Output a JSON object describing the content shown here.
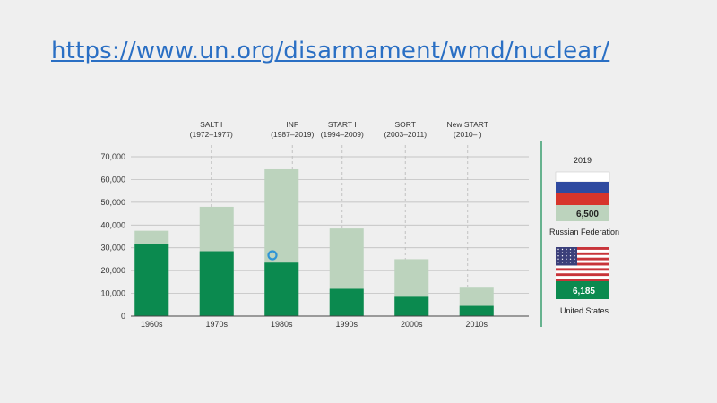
{
  "link": {
    "text": "https://www.un.org/disarmament/wmd/nuclear/"
  },
  "colors": {
    "current": "#0b8a4f",
    "peak": "#bcd3bd",
    "cursor": "#2f95d6",
    "russia_white": "#ffffff",
    "russia_blue": "#2f4aa0",
    "russia_red": "#d7352b",
    "us_red": "#c8343a",
    "us_blue": "#3b3f7a"
  },
  "chart_data": {
    "type": "bar",
    "categories": [
      "1960s",
      "1970s",
      "1980s",
      "1990s",
      "2000s",
      "2010s"
    ],
    "series": [
      {
        "values": [
          31500,
          28500,
          23500,
          12000,
          8500,
          4500
        ]
      },
      {
        "values": [
          37500,
          48000,
          64500,
          38500,
          25000,
          12500
        ]
      }
    ],
    "ylim": [
      0,
      70000
    ],
    "yticks": [
      0,
      10000,
      20000,
      30000,
      40000,
      50000,
      60000,
      70000
    ],
    "ytick_labels": [
      "0",
      "10,000",
      "20,000",
      "30,000",
      "40,000",
      "50,000",
      "60,000",
      "70,000"
    ],
    "grid": true,
    "treaties": [
      {
        "name": "SALT I",
        "years": "(1972–1977)",
        "category": "1970s"
      },
      {
        "name": "INF",
        "years": "(1987–2019)",
        "category": "1980s"
      },
      {
        "name": "START I",
        "years": "(1994–2009)",
        "category": "1990s"
      },
      {
        "name": "SORT",
        "years": "(2003–2011)",
        "category": "2000s"
      },
      {
        "name": "New START",
        "years": "(2010– )",
        "category": "2010s"
      }
    ]
  },
  "side_panel": {
    "year": "2019",
    "countries": [
      {
        "name": "Russian Federation",
        "value": "6,500",
        "flag_icon": "russia-flag-icon"
      },
      {
        "name": "United States",
        "value": "6,185",
        "flag_icon": "us-flag-icon"
      }
    ]
  }
}
